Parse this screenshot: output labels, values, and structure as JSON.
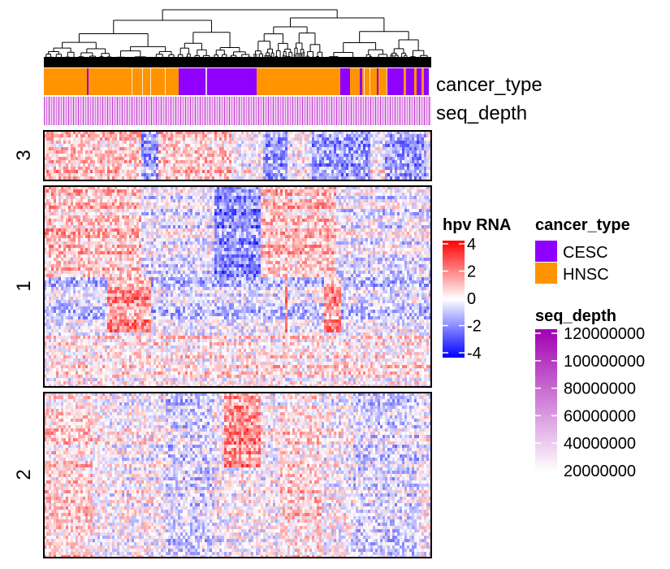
{
  "chart_data": {
    "type": "heatmap",
    "title": "",
    "xlabel": "",
    "ylabel": "",
    "dendrogram": "column-clustering",
    "annotations": [
      {
        "name": "cancer_type",
        "kind": "categorical"
      },
      {
        "name": "seq_depth",
        "kind": "continuous"
      }
    ],
    "row_clusters": [
      "3",
      "1",
      "2"
    ],
    "column_cancer_type_blocks": [
      {
        "category": "HNSC",
        "width": 53
      },
      {
        "category": "CESC",
        "width": 2
      },
      {
        "category": "HNSC",
        "width": 111
      },
      {
        "category": "CESC",
        "width": 32
      },
      {
        "category": "CESC",
        "width": 64
      },
      {
        "category": "HNSC",
        "width": 103
      },
      {
        "category": "CESC",
        "width": 12
      },
      {
        "category": "HNSC",
        "width": 12
      },
      {
        "category": "CESC",
        "width": 3
      },
      {
        "category": "HNSC",
        "width": 18
      },
      {
        "category": "CESC",
        "width": 2
      },
      {
        "category": "HNSC",
        "width": 10
      },
      {
        "category": "CESC",
        "width": 21
      },
      {
        "category": "HNSC",
        "width": 3
      },
      {
        "category": "CESC",
        "width": 10
      },
      {
        "category": "HNSC",
        "width": 3
      },
      {
        "category": "CESC",
        "width": 6
      },
      {
        "category": "HNSC",
        "width": 3
      },
      {
        "category": "CESC",
        "width": 6
      }
    ],
    "legends": {
      "hpv_rna": {
        "title": "hpv RNA",
        "range": [
          -4,
          4
        ],
        "ticks": [
          "4",
          "2",
          "0",
          "-2",
          "-4"
        ],
        "colors": [
          "#ff0000",
          "#ffffff",
          "#0000ff"
        ]
      },
      "cancer_type": {
        "title": "cancer_type",
        "items": [
          {
            "label": "CESC",
            "color": "#8f00ff"
          },
          {
            "label": "HNSC",
            "color": "#ff9300"
          }
        ]
      },
      "seq_depth": {
        "title": "seq_depth",
        "range": [
          20000000,
          120000000
        ],
        "ticks": [
          "120000000",
          "100000000",
          "80000000",
          "60000000",
          "40000000",
          "20000000"
        ],
        "colors": [
          "#a000b0",
          "#ffffff"
        ]
      }
    }
  }
}
